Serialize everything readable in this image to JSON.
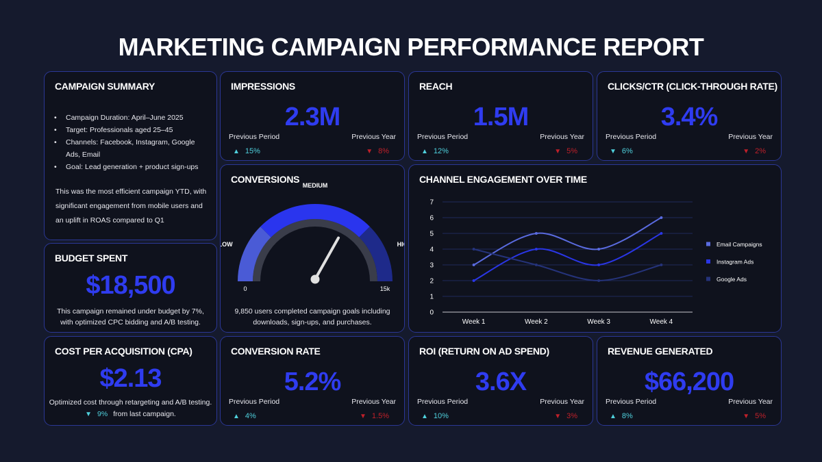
{
  "title": "MARKETING CAMPAIGN PERFORMANCE REPORT",
  "summary": {
    "title": "CAMPAIGN SUMMARY",
    "bullets": [
      "Campaign Duration: April–June 2025",
      "Target: Professionals aged 25–45",
      "Channels: Facebook, Instagram, Google Ads, Email",
      "Goal: Lead generation + product sign-ups"
    ],
    "paragraph": "This was the most efficient campaign YTD, with significant engagement from mobile users and an uplift in ROAS compared to Q1"
  },
  "budget": {
    "title": "BUDGET SPENT",
    "value": "$18,500",
    "note": "This campaign remained under budget by 7%, with optimized CPC bidding and A/B testing."
  },
  "cpa": {
    "title": "COST PER ACQUISITION (CPA)",
    "value": "$2.13",
    "note": "Optimized cost through retargeting and A/B testing.",
    "change": "9%",
    "direction": "down",
    "positive": true,
    "change_text": "from last campaign."
  },
  "metrics": [
    {
      "title": "IMPRESSIONS",
      "value": "2.3M",
      "comparisons": [
        {
          "label": "Previous Period",
          "change": "15%",
          "direction": "up",
          "positive": true
        },
        {
          "label": "Previous Year",
          "change": "8%",
          "direction": "down",
          "positive": false
        }
      ]
    },
    {
      "title": "REACH",
      "value": "1.5M",
      "comparisons": [
        {
          "label": "Previous Period",
          "change": "12%",
          "direction": "up",
          "positive": true
        },
        {
          "label": "Previous Year",
          "change": "5%",
          "direction": "down",
          "positive": false
        }
      ]
    },
    {
      "title": "CLICKS/CTR (CLICK-THROUGH RATE)",
      "value": "3.4%",
      "comparisons": [
        {
          "label": "Previous Period",
          "change": "6%",
          "direction": "down",
          "positive": true
        },
        {
          "label": "Previous Year",
          "change": "2%",
          "direction": "down",
          "positive": false
        }
      ]
    },
    {
      "title": "CONVERSION RATE",
      "value": "5.2%",
      "comparisons": [
        {
          "label": "Previous Period",
          "change": "4%",
          "direction": "up",
          "positive": true
        },
        {
          "label": "Previous Year",
          "change": "1.5%",
          "direction": "down",
          "positive": false
        }
      ]
    },
    {
      "title": "ROI (RETURN ON AD SPEND)",
      "value": "3.6X",
      "comparisons": [
        {
          "label": "Previous Period",
          "change": "10%",
          "direction": "up",
          "positive": true
        },
        {
          "label": "Previous Year",
          "change": "3%",
          "direction": "down",
          "positive": false
        }
      ]
    },
    {
      "title": "REVENUE GENERATED",
      "value": "$66,200",
      "comparisons": [
        {
          "label": "Previous Period",
          "change": "8%",
          "direction": "up",
          "positive": true
        },
        {
          "label": "Previous Year",
          "change": "5%",
          "direction": "down",
          "positive": false
        }
      ]
    }
  ],
  "conversions": {
    "title": "CONVERSIONS",
    "gauge": {
      "value": 9850,
      "range": [
        0,
        15000
      ],
      "ticks": [
        0,
        {
          "value": 15000,
          "label": "15k"
        }
      ],
      "zones": [
        {
          "label": "LOW",
          "from": 0,
          "to": 3750,
          "color": "#4a5bd6"
        },
        {
          "label": "MEDIUM",
          "from": 3750,
          "to": 11250,
          "color": "#2a35ee"
        },
        {
          "label": "HIGH",
          "from": 11250,
          "to": 15000,
          "color": "#1e2a8a"
        }
      ]
    },
    "note": "9,850 users completed campaign goals including downloads, sign-ups, and purchases."
  },
  "chart_data": {
    "type": "line",
    "title": "CHANNEL ENGAGEMENT OVER TIME",
    "categories": [
      "Week 1",
      "Week 2",
      "Week 3",
      "Week 4"
    ],
    "series": [
      {
        "name": "Email Campaigns",
        "color": "#5a6be0",
        "values": [
          3,
          5,
          4,
          6
        ]
      },
      {
        "name": "Instagram Ads",
        "color": "#2a36e6",
        "values": [
          2,
          4,
          3,
          5
        ]
      },
      {
        "name": "Google Ads",
        "color": "#25337a",
        "values": [
          4,
          3,
          2,
          3
        ]
      }
    ],
    "ylim": [
      0,
      7
    ],
    "yticks": [
      0,
      1,
      2,
      3,
      4,
      5,
      6,
      7
    ],
    "grid": true,
    "smooth": true,
    "legend": "right"
  }
}
